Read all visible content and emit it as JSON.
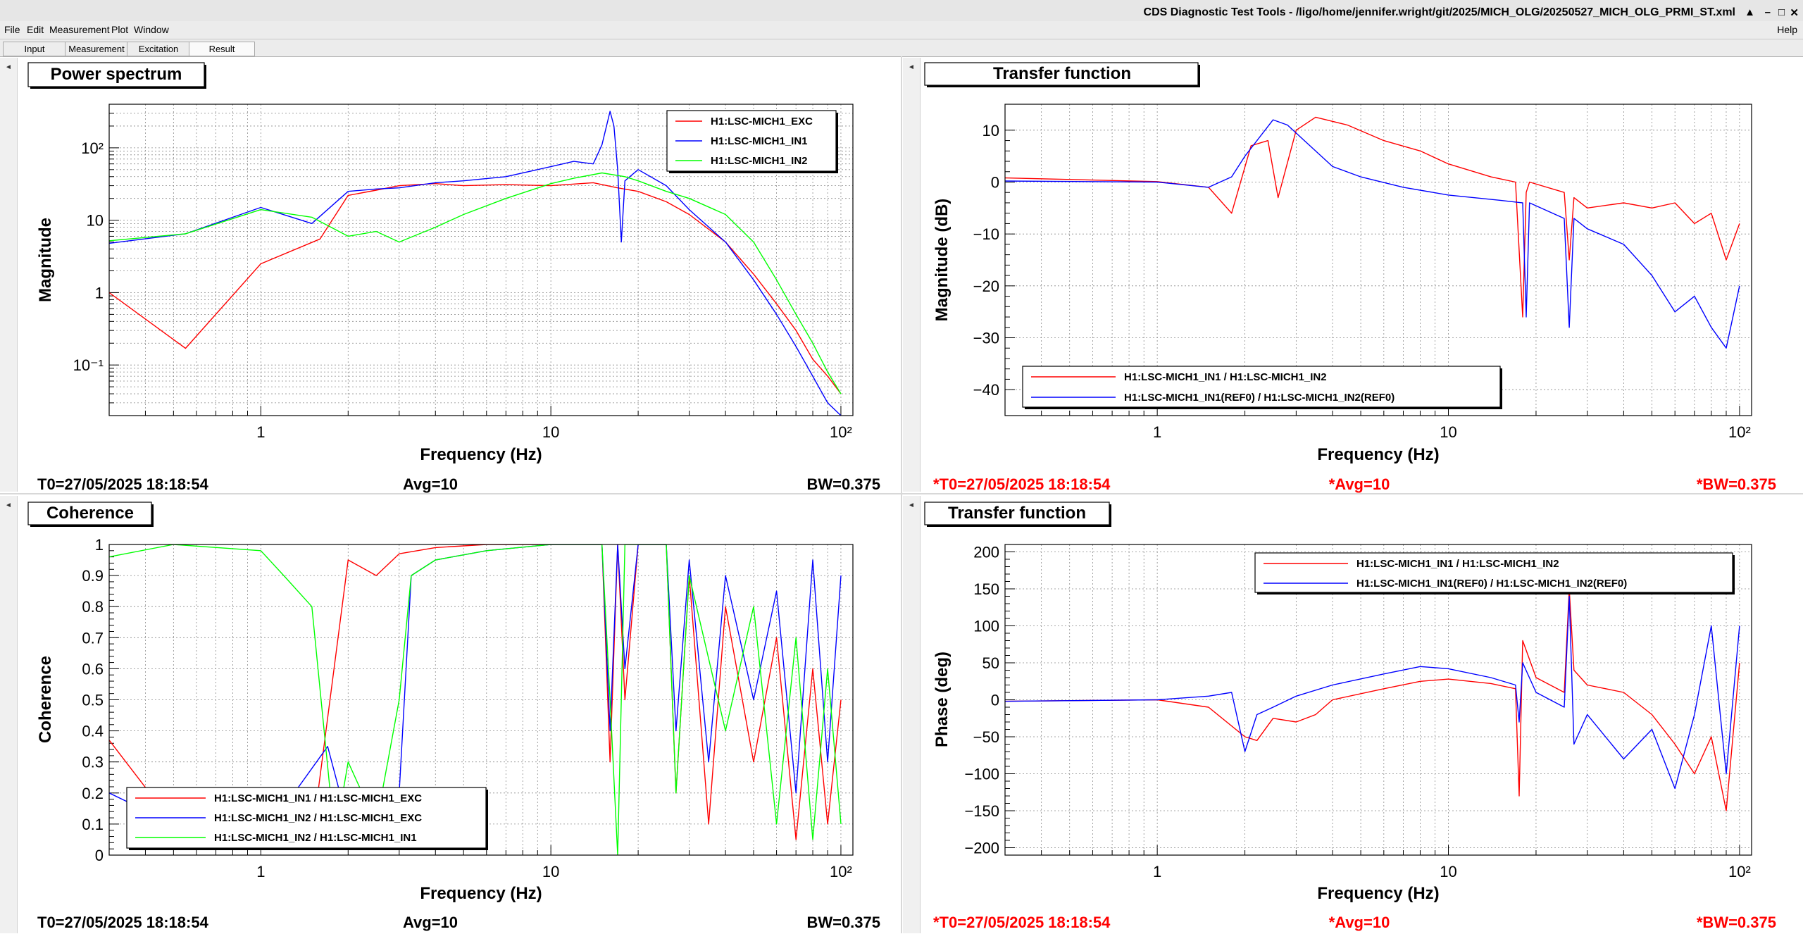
{
  "window": {
    "title": "CDS Diagnostic Test Tools - /ligo/home/jennifer.wright/git/2025/MICH_OLG/20250527_MICH_OLG_PRMI_ST.xml",
    "buttons": [
      "▲",
      "–",
      "□",
      "✕"
    ]
  },
  "menu": {
    "items": [
      "File",
      "Edit",
      "Measurement",
      "Plot",
      "Window"
    ],
    "help": "Help"
  },
  "tabs": [
    {
      "label": "Input"
    },
    {
      "label": "Measurement"
    },
    {
      "label": "Excitation"
    },
    {
      "label": "Result",
      "active": true
    }
  ],
  "colors": {
    "red": "#ff0000",
    "blue": "#0000ff",
    "green": "#00ff00",
    "grid": "#777777",
    "status_red": "#ff0000"
  },
  "chart_data": [
    {
      "type": "line",
      "title": "Power spectrum",
      "xlabel": "Frequency (Hz)",
      "ylabel": "Magnitude",
      "xscale": "log",
      "yscale": "log",
      "xlim": [
        0.3,
        110
      ],
      "ylim": [
        0.02,
        400
      ],
      "xticks": [
        {
          "v": 1,
          "t": "1"
        },
        {
          "v": 10,
          "t": "10"
        },
        {
          "v": 100,
          "t": "10²"
        }
      ],
      "yticks": [
        {
          "v": 0.1,
          "t": "10⁻¹"
        },
        {
          "v": 1,
          "t": "1"
        },
        {
          "v": 10,
          "t": "10"
        },
        {
          "v": 100,
          "t": "10²"
        }
      ],
      "legend_position": "top-right",
      "series": [
        {
          "name": "H1:LSC-MICH1_EXC",
          "color": "#ff0000",
          "x": [
            0.3,
            0.55,
            1,
            1.6,
            2,
            2.5,
            3,
            4,
            5,
            7,
            10,
            14,
            17,
            20,
            25,
            30,
            40,
            50,
            60,
            70,
            80,
            90,
            100
          ],
          "y": [
            1.0,
            0.17,
            2.5,
            5.5,
            22,
            26,
            30,
            32,
            30,
            31,
            30,
            33,
            28,
            25,
            18,
            12,
            5,
            1.8,
            0.7,
            0.3,
            0.12,
            0.07,
            0.04
          ]
        },
        {
          "name": "H1:LSC-MICH1_IN1",
          "color": "#0000ff",
          "x": [
            0.3,
            0.55,
            1,
            1.5,
            2,
            2.5,
            3,
            4,
            5,
            7,
            10,
            12,
            14,
            15,
            16,
            16.5,
            17,
            17.5,
            18,
            20,
            25,
            30,
            40,
            50,
            60,
            70,
            80,
            90,
            100
          ],
          "y": [
            4.8,
            6.5,
            15,
            9,
            25,
            27,
            28,
            33,
            35,
            40,
            55,
            65,
            60,
            110,
            320,
            200,
            50,
            5,
            35,
            50,
            30,
            14,
            5,
            1.5,
            0.5,
            0.18,
            0.07,
            0.03,
            0.02
          ]
        },
        {
          "name": "H1:LSC-MICH1_IN2",
          "color": "#00ff00",
          "x": [
            0.3,
            0.55,
            1,
            1.5,
            2,
            2.5,
            3,
            4,
            5,
            7,
            10,
            12,
            15,
            18,
            20,
            25,
            30,
            40,
            50,
            60,
            70,
            80,
            90,
            100
          ],
          "y": [
            5.2,
            6.5,
            14,
            11,
            6,
            7,
            5,
            8,
            12,
            20,
            32,
            38,
            45,
            40,
            35,
            25,
            20,
            12,
            5,
            1.5,
            0.5,
            0.2,
            0.08,
            0.04
          ]
        }
      ]
    },
    {
      "type": "line",
      "title": "Transfer function",
      "xlabel": "Frequency (Hz)",
      "ylabel": "Magnitude (dB)",
      "xscale": "log",
      "xlim": [
        0.3,
        110
      ],
      "ylim": [
        -45,
        15
      ],
      "xticks": [
        {
          "v": 1,
          "t": "1"
        },
        {
          "v": 10,
          "t": "10"
        },
        {
          "v": 100,
          "t": "10²"
        }
      ],
      "yticks": [
        {
          "v": 10,
          "t": "10"
        },
        {
          "v": 0,
          "t": "0"
        },
        {
          "v": -10,
          "t": "−10"
        },
        {
          "v": -20,
          "t": "−20"
        },
        {
          "v": -30,
          "t": "−30"
        },
        {
          "v": -40,
          "t": "−40"
        }
      ],
      "legend_position": "bottom-left",
      "series": [
        {
          "name": "H1:LSC-MICH1_IN1 / H1:LSC-MICH1_IN2",
          "color": "#ff0000",
          "x": [
            0.3,
            1,
            1.5,
            1.8,
            2.1,
            2.4,
            2.6,
            3,
            3.5,
            4.5,
            6,
            8,
            10,
            14,
            17,
            18,
            18.5,
            19,
            25,
            26,
            27,
            30,
            40,
            50,
            60,
            70,
            80,
            90,
            100
          ],
          "y": [
            0.8,
            0.1,
            -1,
            -6,
            7,
            8,
            -3,
            10,
            12.5,
            11,
            8,
            6,
            3.5,
            1,
            0,
            -26,
            -2,
            0,
            -2,
            -15,
            -3,
            -5,
            -4,
            -5,
            -4,
            -8,
            -6,
            -15,
            -8
          ]
        },
        {
          "name": "H1:LSC-MICH1_IN1(REF0) / H1:LSC-MICH1_IN2(REF0)",
          "color": "#0000ff",
          "x": [
            0.3,
            1,
            1.5,
            1.8,
            2,
            2.5,
            2.8,
            3.2,
            4,
            5,
            7,
            10,
            15,
            18,
            18.5,
            19,
            25,
            26,
            27,
            30,
            40,
            50,
            60,
            70,
            80,
            90,
            100
          ],
          "y": [
            0.2,
            0,
            -1,
            1,
            5,
            12,
            11,
            8,
            3,
            1,
            -1,
            -2.5,
            -3.5,
            -4,
            -26,
            -4,
            -7,
            -28,
            -7,
            -9,
            -12,
            -18,
            -25,
            -22,
            -28,
            -32,
            -20
          ]
        }
      ]
    },
    {
      "type": "line",
      "title": "Coherence",
      "xlabel": "Frequency (Hz)",
      "ylabel": "Coherence",
      "xscale": "log",
      "xlim": [
        0.3,
        110
      ],
      "ylim": [
        0,
        1
      ],
      "xticks": [
        {
          "v": 1,
          "t": "1"
        },
        {
          "v": 10,
          "t": "10"
        },
        {
          "v": 100,
          "t": "10²"
        }
      ],
      "yticks": [
        {
          "v": 0,
          "t": "0"
        },
        {
          "v": 0.1,
          "t": "0.1"
        },
        {
          "v": 0.2,
          "t": "0.2"
        },
        {
          "v": 0.3,
          "t": "0.3"
        },
        {
          "v": 0.4,
          "t": "0.4"
        },
        {
          "v": 0.5,
          "t": "0.5"
        },
        {
          "v": 0.6,
          "t": "0.6"
        },
        {
          "v": 0.7,
          "t": "0.7"
        },
        {
          "v": 0.8,
          "t": "0.8"
        },
        {
          "v": 0.9,
          "t": "0.9"
        },
        {
          "v": 1,
          "t": "1"
        }
      ],
      "legend_position": "bottom-left",
      "series": [
        {
          "name": "H1:LSC-MICH1_IN1 / H1:LSC-MICH1_EXC",
          "color": "#ff0000",
          "x": [
            0.3,
            0.5,
            1,
            1.5,
            2,
            2.5,
            3,
            4,
            6,
            10,
            15,
            16,
            17,
            18,
            20,
            25,
            27,
            30,
            35,
            40,
            50,
            60,
            70,
            80,
            90,
            100
          ],
          "y": [
            0.37,
            0.1,
            0.02,
            0.05,
            0.95,
            0.9,
            0.97,
            0.99,
            1,
            1,
            1,
            0.3,
            1,
            0.5,
            1,
            1,
            0.2,
            0.9,
            0.1,
            0.8,
            0.3,
            0.7,
            0.05,
            0.6,
            0.1,
            0.5
          ]
        },
        {
          "name": "H1:LSC-MICH1_IN2 / H1:LSC-MICH1_EXC",
          "color": "#0000ff",
          "x": [
            0.3,
            0.5,
            1,
            1.7,
            2,
            2.5,
            3,
            3.3,
            4,
            6,
            10,
            15,
            16,
            17,
            18,
            20,
            25,
            27,
            30,
            35,
            40,
            50,
            60,
            70,
            80,
            90,
            100
          ],
          "y": [
            0.2,
            0.1,
            0.05,
            0.35,
            0.1,
            0.05,
            0.2,
            0.9,
            0.95,
            0.98,
            1,
            1,
            0.4,
            1,
            0.6,
            1,
            1,
            0.4,
            0.95,
            0.3,
            0.9,
            0.5,
            0.85,
            0.2,
            0.95,
            0.3,
            0.9
          ]
        },
        {
          "name": "H1:LSC-MICH1_IN2 / H1:LSC-MICH1_IN1",
          "color": "#00ff00",
          "x": [
            0.3,
            0.5,
            1,
            1.2,
            1.5,
            1.8,
            2,
            2.5,
            3,
            3.3,
            4,
            6,
            10,
            15,
            16,
            17,
            18,
            20,
            25,
            27,
            30,
            40,
            50,
            60,
            70,
            80,
            90,
            100
          ],
          "y": [
            0.96,
            1,
            0.98,
            0.9,
            0.8,
            0.05,
            0.3,
            0.1,
            0.5,
            0.9,
            0.95,
            0.98,
            1,
            1,
            0.5,
            0,
            1,
            1,
            1,
            0.2,
            0.9,
            0.4,
            0.8,
            0.1,
            0.7,
            0.05,
            0.6,
            0.1
          ]
        }
      ]
    },
    {
      "type": "line",
      "title": "Transfer function",
      "xlabel": "Frequency (Hz)",
      "ylabel": "Phase (deg)",
      "xscale": "log",
      "xlim": [
        0.3,
        110
      ],
      "ylim": [
        -210,
        210
      ],
      "xticks": [
        {
          "v": 1,
          "t": "1"
        },
        {
          "v": 10,
          "t": "10"
        },
        {
          "v": 100,
          "t": "10²"
        }
      ],
      "yticks": [
        {
          "v": 200,
          "t": "200"
        },
        {
          "v": 150,
          "t": "150"
        },
        {
          "v": 100,
          "t": "100"
        },
        {
          "v": 50,
          "t": "50"
        },
        {
          "v": 0,
          "t": "0"
        },
        {
          "v": -50,
          "t": "−50"
        },
        {
          "v": -100,
          "t": "−100"
        },
        {
          "v": -150,
          "t": "−150"
        },
        {
          "v": -200,
          "t": "−200"
        }
      ],
      "legend_position": "top-right",
      "series": [
        {
          "name": "H1:LSC-MICH1_IN1 / H1:LSC-MICH1_IN2",
          "color": "#ff0000",
          "x": [
            0.3,
            1,
            1.5,
            2,
            2.2,
            2.5,
            3,
            3.5,
            4,
            6,
            8,
            10,
            14,
            17,
            17.5,
            18,
            20,
            25,
            26,
            27,
            30,
            40,
            50,
            60,
            70,
            80,
            90,
            100
          ],
          "y": [
            -2,
            0,
            -10,
            -50,
            -55,
            -25,
            -30,
            -20,
            0,
            15,
            25,
            28,
            22,
            15,
            -130,
            80,
            30,
            10,
            150,
            40,
            20,
            10,
            -20,
            -60,
            -100,
            -50,
            -150,
            50
          ]
        },
        {
          "name": "H1:LSC-MICH1_IN1(REF0) / H1:LSC-MICH1_IN2(REF0)",
          "color": "#0000ff",
          "x": [
            0.3,
            1,
            1.5,
            1.8,
            2,
            2.2,
            2.5,
            3,
            4,
            6,
            8,
            10,
            14,
            17,
            17.5,
            18,
            20,
            25,
            26,
            27,
            30,
            40,
            50,
            60,
            70,
            80,
            90,
            100
          ],
          "y": [
            -2,
            0,
            5,
            10,
            -70,
            -20,
            -10,
            5,
            20,
            35,
            45,
            42,
            30,
            20,
            -30,
            50,
            10,
            -10,
            140,
            -60,
            -20,
            -80,
            -40,
            -120,
            -20,
            100,
            -100,
            100
          ]
        }
      ]
    }
  ],
  "panels": [
    {
      "status": {
        "t0": "T0=27/05/2025 18:18:54",
        "avg": "Avg=10",
        "bw": "BW=0.375"
      }
    },
    {
      "status": {
        "t0": "*T0=27/05/2025 18:18:54",
        "avg": "*Avg=10",
        "bw": "*BW=0.375"
      }
    },
    {
      "status": {
        "t0": "T0=27/05/2025 18:18:54",
        "avg": "Avg=10",
        "bw": "BW=0.375"
      }
    },
    {
      "status": {
        "t0": "*T0=27/05/2025 18:18:54",
        "avg": "*Avg=10",
        "bw": "*BW=0.375"
      }
    }
  ]
}
